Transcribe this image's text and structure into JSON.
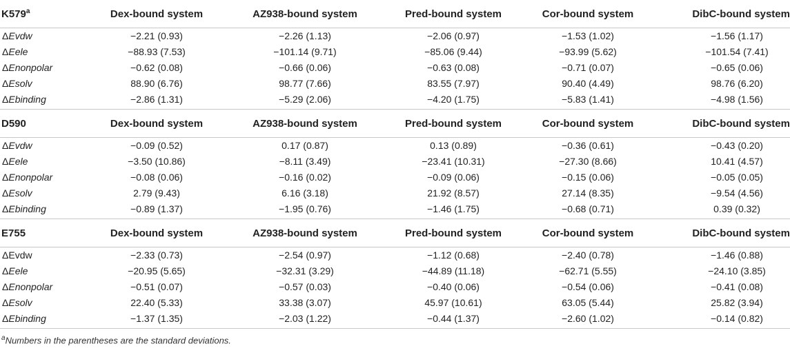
{
  "columns": [
    "Dex-bound system",
    "AZ938-bound system",
    "Pred-bound system",
    "Cor-bound system",
    "DibC-bound system"
  ],
  "groups": [
    {
      "residue": "K579",
      "residue_sup": "a",
      "rows": [
        {
          "prefix": "Δ",
          "term": "Evdw",
          "italic": true,
          "values": [
            "−2.21 (0.93)",
            "−2.26 (1.13)",
            "−2.06 (0.97)",
            "−1.53 (1.02)",
            "−1.56 (1.17)"
          ]
        },
        {
          "prefix": "Δ",
          "term": "Eele",
          "italic": true,
          "values": [
            "−88.93 (7.53)",
            "−101.14 (9.71)",
            "−85.06 (9.44)",
            "−93.99 (5.62)",
            "−101.54 (7.41)"
          ]
        },
        {
          "prefix": "Δ",
          "term": "Enonpolar",
          "italic": true,
          "values": [
            "−0.62 (0.08)",
            "−0.66 (0.06)",
            "−0.63 (0.08)",
            "−0.71 (0.07)",
            "−0.65 (0.06)"
          ]
        },
        {
          "prefix": "Δ",
          "term": "Esolv",
          "italic": true,
          "values": [
            "88.90 (6.76)",
            "98.77 (7.66)",
            "83.55 (7.97)",
            "90.40 (4.49)",
            "98.76 (6.20)"
          ]
        },
        {
          "prefix": "Δ",
          "term": "Ebinding",
          "italic": true,
          "values": [
            "−2.86 (1.31)",
            "−5.29 (2.06)",
            "−4.20 (1.75)",
            "−5.83 (1.41)",
            "−4.98 (1.56)"
          ]
        }
      ]
    },
    {
      "residue": "D590",
      "residue_sup": "",
      "rows": [
        {
          "prefix": "Δ",
          "term": "Evdw",
          "italic": true,
          "values": [
            "−0.09 (0.52)",
            "0.17 (0.87)",
            "0.13 (0.89)",
            "−0.36 (0.61)",
            "−0.43 (0.20)"
          ]
        },
        {
          "prefix": "Δ",
          "term": "Eele",
          "italic": true,
          "values": [
            "−3.50 (10.86)",
            "−8.11 (3.49)",
            "−23.41 (10.31)",
            "−27.30 (8.66)",
            "10.41 (4.57)"
          ]
        },
        {
          "prefix": "Δ",
          "term": "Enonpolar",
          "italic": true,
          "values": [
            "−0.08 (0.06)",
            "−0.16 (0.02)",
            "−0.09 (0.06)",
            "−0.15 (0.06)",
            "−0.05 (0.05)"
          ]
        },
        {
          "prefix": "Δ",
          "term": "Esolv",
          "italic": true,
          "values": [
            "2.79 (9.43)",
            "6.16 (3.18)",
            "21.92 (8.57)",
            "27.14 (8.35)",
            "−9.54 (4.56)"
          ]
        },
        {
          "prefix": "Δ",
          "term": "Ebinding",
          "italic": true,
          "values": [
            "−0.89 (1.37)",
            "−1.95 (0.76)",
            "−1.46 (1.75)",
            "−0.68 (0.71)",
            "0.39 (0.32)"
          ]
        }
      ]
    },
    {
      "residue": "E755",
      "residue_sup": "",
      "rows": [
        {
          "prefix": "Δ",
          "term": "Evdw",
          "italic": false,
          "values": [
            "−2.33 (0.73)",
            "−2.54 (0.97)",
            "−1.12 (0.68)",
            "−2.40 (0.78)",
            "−1.46 (0.88)"
          ]
        },
        {
          "prefix": "Δ",
          "term": "Eele",
          "italic": true,
          "values": [
            "−20.95 (5.65)",
            "−32.31 (3.29)",
            "−44.89 (11.18)",
            "−62.71 (5.55)",
            "−24.10 (3.85)"
          ]
        },
        {
          "prefix": "Δ",
          "term": "Enonpolar",
          "italic": true,
          "values": [
            "−0.51 (0.07)",
            "−0.57 (0.03)",
            "−0.40 (0.06)",
            "−0.54 (0.06)",
            "−0.41 (0.08)"
          ]
        },
        {
          "prefix": "Δ",
          "term": "Esolv",
          "italic": true,
          "values": [
            "22.40 (5.33)",
            "33.38 (3.07)",
            "45.97 (10.61)",
            "63.05 (5.44)",
            "25.82 (3.94)"
          ]
        },
        {
          "prefix": "Δ",
          "term": "Ebinding",
          "italic": true,
          "values": [
            "−1.37 (1.35)",
            "−2.03 (1.22)",
            "−0.44 (1.37)",
            "−2.60 (1.02)",
            "−0.14 (0.82)"
          ]
        }
      ]
    }
  ],
  "footnote": {
    "marker": "a",
    "text": "Numbers in the parentheses are the standard deviations."
  }
}
